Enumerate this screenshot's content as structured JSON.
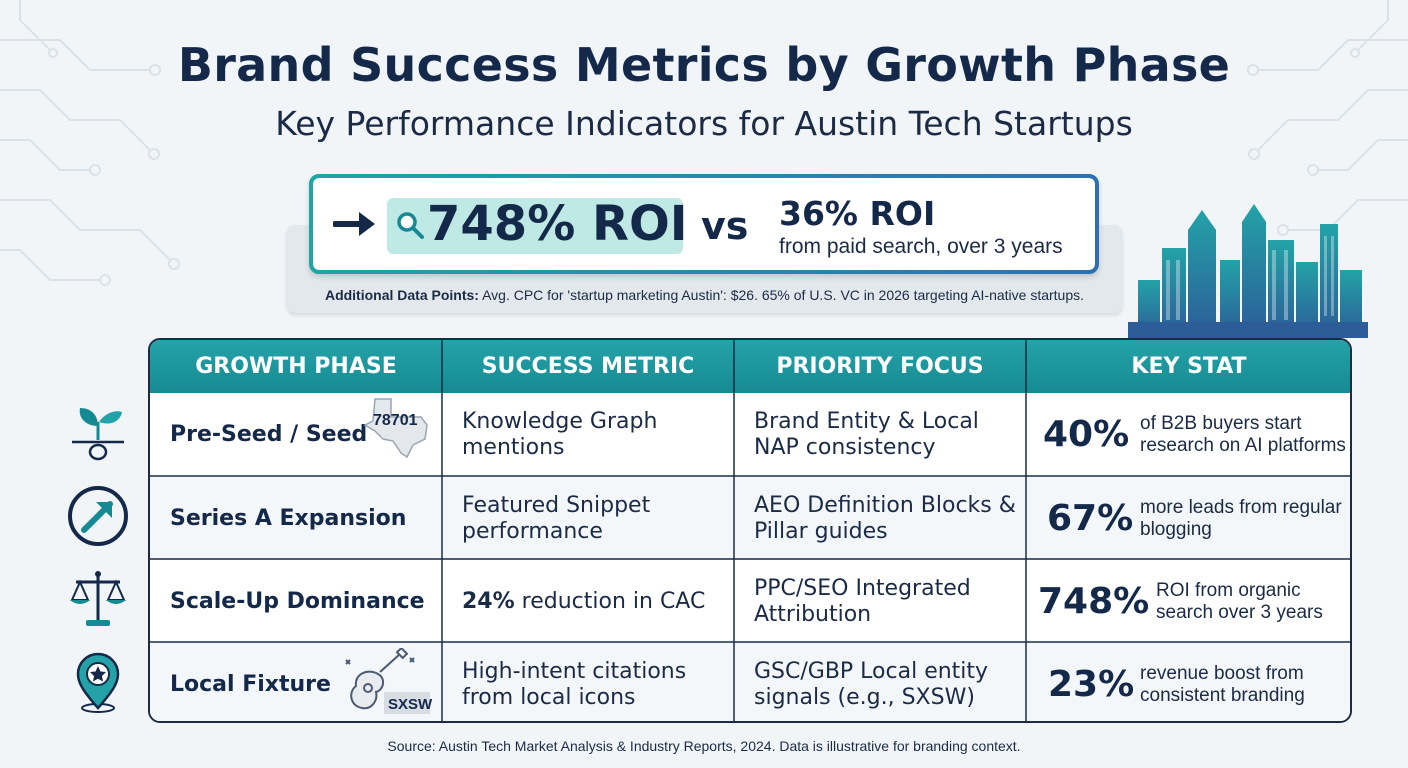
{
  "header": {
    "title": "Brand Success Metrics by Growth Phase",
    "subtitle": "Key Performance Indicators for Austin Tech Startups"
  },
  "hero": {
    "big_stat": "748% ROI",
    "vs": "vs",
    "compare_stat": "36% ROI",
    "compare_sub": "from paid search, over 3 years",
    "note_label": "Additional Data Points:",
    "note_text": " Avg. CPC for 'startup marketing Austin': $26. 65% of U.S. VC in 2026 targeting AI-native startups."
  },
  "table": {
    "headers": [
      "GROWTH PHASE",
      "SUCCESS METRIC",
      "PRIORITY FOCUS",
      "KEY STAT"
    ],
    "rows": [
      {
        "icon": "seedling-icon",
        "phase": "Pre-Seed / Seed",
        "badge": "78701",
        "metric": "Knowledge Graph mentions",
        "metric_bold": "",
        "focus": "Brand Entity & Local NAP consistency",
        "stat": "40%",
        "stat_desc": "of B2B buyers start research on AI platforms"
      },
      {
        "icon": "growth-arrow-icon",
        "phase": "Series A Expansion",
        "badge": "",
        "metric": "Featured Snippet performance",
        "metric_bold": "",
        "focus": "AEO Definition Blocks & Pillar guides",
        "stat": "67%",
        "stat_desc": "more leads from regular blogging"
      },
      {
        "icon": "scales-icon",
        "phase": "Scale-Up Dominance",
        "badge": "",
        "metric": " reduction in CAC",
        "metric_bold": "24%",
        "focus": "PPC/SEO Integrated Attribution",
        "stat": "748%",
        "stat_desc": "ROI from organic search over 3 years"
      },
      {
        "icon": "location-pin-star-icon",
        "phase": "Local Fixture",
        "badge": "SXSW",
        "metric": "High-intent citations from local icons",
        "metric_bold": "",
        "focus": "GSC/GBP Local entity signals (e.g., SXSW)",
        "stat": "23%",
        "stat_desc": "revenue boost from consistent branding"
      }
    ]
  },
  "footer": {
    "source": "Source: Austin Tech Market Analysis & Industry Reports, 2024. Data is illustrative for branding context."
  },
  "colors": {
    "navy": "#14294a",
    "teal": "#1ea6a4",
    "teal_dark": "#168a92",
    "pill": "#bfe9e4"
  }
}
